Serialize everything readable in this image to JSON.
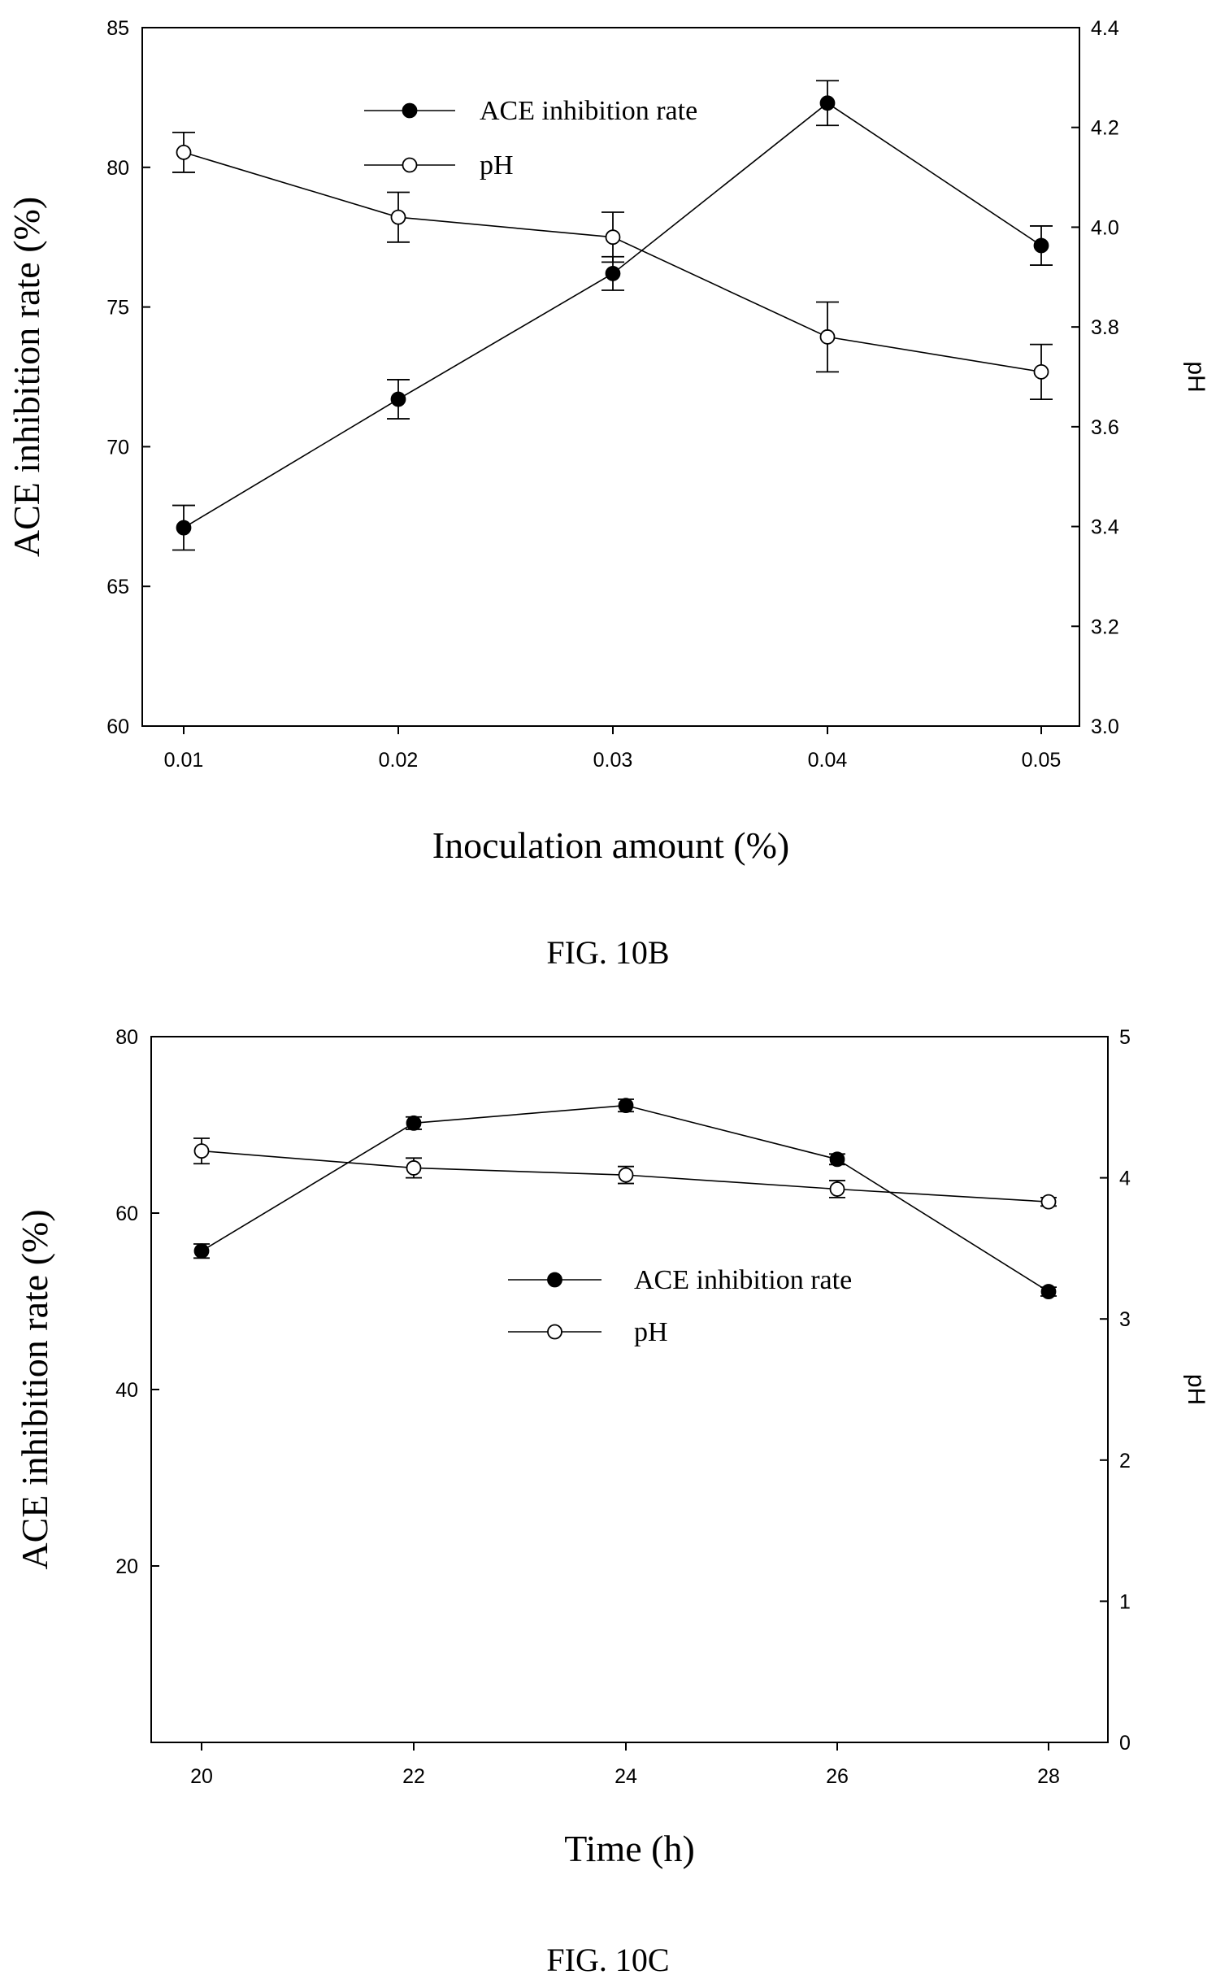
{
  "chart_data": [
    {
      "type": "line",
      "caption": "FIG. 10B",
      "xlabel": "Inoculation amount (%)",
      "ylabel": "ACE inhibition rate (%)",
      "y2label": "pH",
      "x": [
        0.01,
        0.02,
        0.03,
        0.04,
        0.05
      ],
      "x_ticks": [
        "0.01",
        "0.02",
        "0.03",
        "0.04",
        "0.05"
      ],
      "ylim": [
        60,
        85
      ],
      "y_ticks": [
        "60",
        "65",
        "70",
        "75",
        "80",
        "85"
      ],
      "y2lim": [
        3.0,
        4.4
      ],
      "y2_ticks": [
        "3.0",
        "3.2",
        "3.4",
        "3.6",
        "3.8",
        "4.0",
        "4.2",
        "4.4"
      ],
      "legend": "upper-center",
      "series": [
        {
          "name": "ACE inhibition rate",
          "axis": "left",
          "marker": "filled-circle",
          "values": [
            67.1,
            71.7,
            76.2,
            82.3,
            77.2
          ],
          "errors": [
            0.8,
            0.7,
            0.6,
            0.8,
            0.7
          ]
        },
        {
          "name": "pH",
          "axis": "right",
          "marker": "open-circle",
          "values": [
            4.15,
            4.02,
            3.98,
            3.78,
            3.71
          ],
          "errors": [
            0.04,
            0.05,
            0.05,
            0.07,
            0.055
          ]
        }
      ]
    },
    {
      "type": "line",
      "caption": "FIG. 10C",
      "xlabel": "Time (h)",
      "ylabel": "ACE inhibition rate (%)",
      "y2label": "pH",
      "x": [
        20,
        22,
        24,
        26,
        28
      ],
      "x_ticks": [
        "20",
        "22",
        "24",
        "26",
        "28"
      ],
      "ylim": [
        0,
        80
      ],
      "y_ticks": [
        "20",
        "40",
        "60",
        "80"
      ],
      "y2lim": [
        0,
        5
      ],
      "y2_ticks": [
        "0",
        "1",
        "2",
        "3",
        "4",
        "5"
      ],
      "legend": "center-right",
      "series": [
        {
          "name": "ACE inhibition rate",
          "axis": "left",
          "marker": "filled-circle",
          "values": [
            55.7,
            70.2,
            72.2,
            66.1,
            51.1
          ],
          "errors": [
            0.8,
            0.7,
            0.7,
            0.6,
            0.5
          ]
        },
        {
          "name": "pH",
          "axis": "right",
          "marker": "open-circle",
          "values": [
            4.19,
            4.07,
            4.02,
            3.92,
            3.83
          ],
          "errors": [
            0.09,
            0.07,
            0.06,
            0.06,
            0.03
          ]
        }
      ]
    }
  ]
}
